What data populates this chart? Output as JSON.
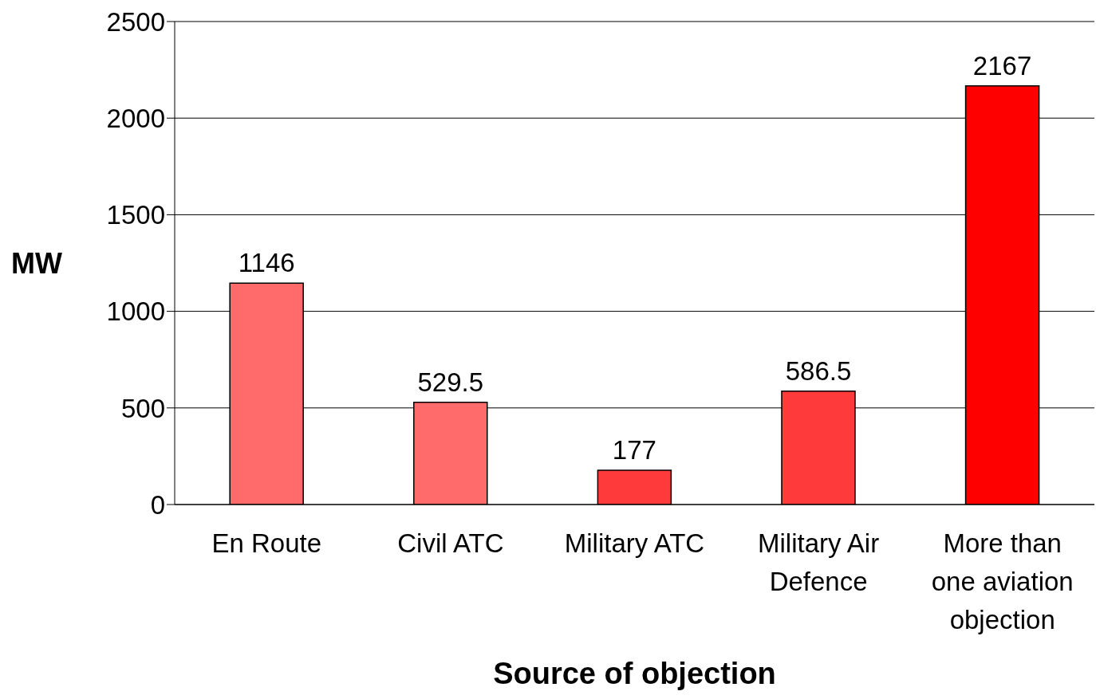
{
  "chart_data": {
    "type": "bar",
    "xlabel": "Source of objection",
    "ylabel": "MW",
    "categories": [
      "En Route",
      "Civil ATC",
      "Military ATC",
      "Military Air Defence",
      "More than one aviation objection"
    ],
    "values": [
      1146,
      529.5,
      177,
      586.5,
      2167
    ],
    "colors": [
      "#ff6a6a",
      "#ff6a6a",
      "#ff3a3a",
      "#ff3a3a",
      "#ff0000"
    ],
    "ylim": [
      0,
      2500
    ],
    "yticks": [
      0,
      500,
      1000,
      1500,
      2000,
      2500
    ],
    "grid": "y",
    "data_labels": true,
    "legend": false
  }
}
